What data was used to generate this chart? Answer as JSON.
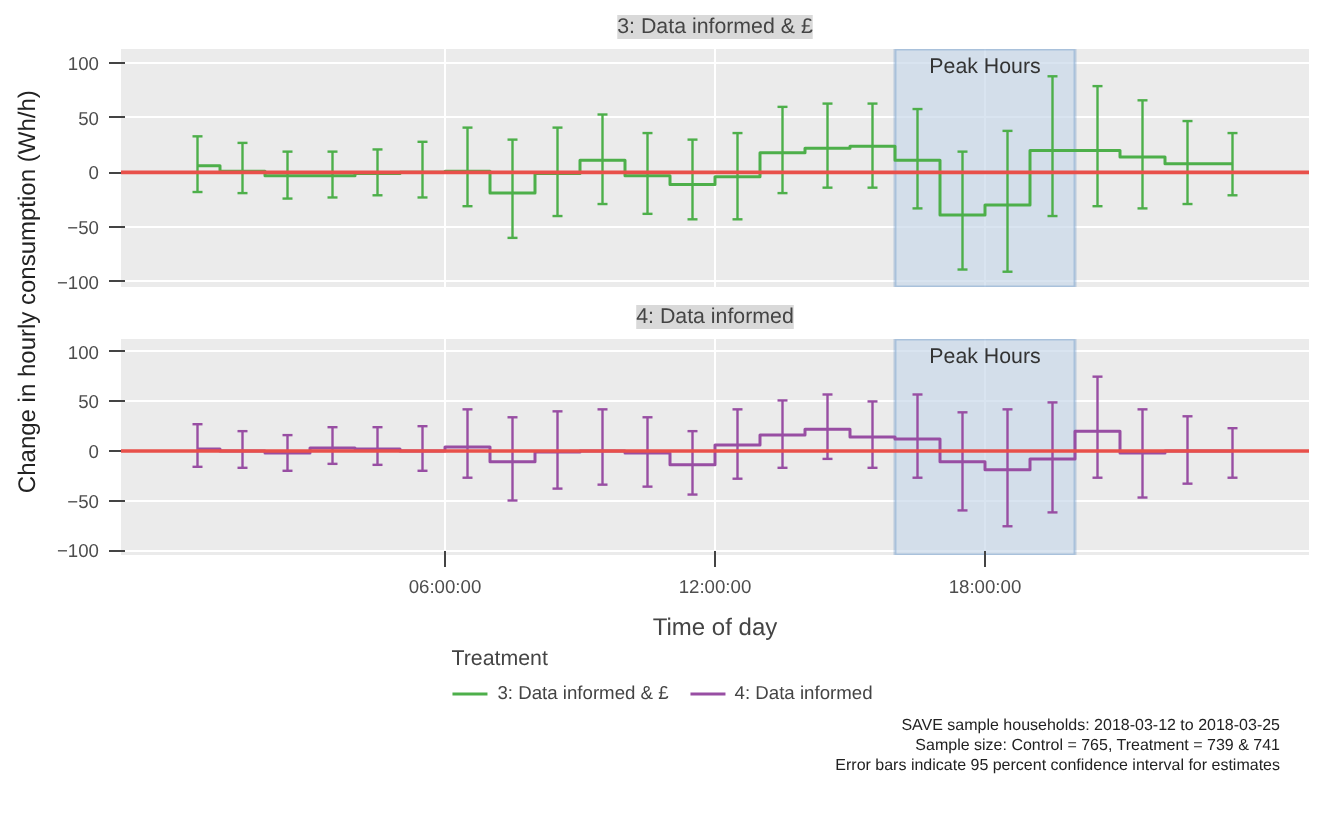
{
  "chart_data": [
    {
      "type": "step",
      "title": "3: Data informed & £",
      "ylabel": "Change in hourly consumption (Wh/h)",
      "x": [
        0.5,
        1.5,
        2.5,
        3.5,
        4.5,
        5.5,
        6.5,
        7.5,
        8.5,
        9.5,
        10.5,
        11.5,
        12.5,
        13.5,
        14.5,
        15.5,
        16.5,
        17.5,
        18.5,
        19.5,
        20.5,
        21.5,
        22.5,
        23.5
      ],
      "xlim": [
        -1.2,
        25.2
      ],
      "xticks": [
        6,
        12,
        18
      ],
      "ylim": [
        -105,
        113
      ],
      "yticks": [
        -100,
        -50,
        0,
        50,
        100
      ],
      "tick_labels": "y",
      "grid": true,
      "series": [
        {
          "name": "3: Data informed & £",
          "color": "#4daf4a",
          "values": [
            6,
            1,
            -3,
            -3,
            -1,
            0,
            1,
            -19,
            -1,
            11,
            -3,
            -11,
            -4,
            18,
            22,
            24,
            11,
            -39,
            -30,
            20,
            20,
            14,
            8,
            8
          ],
          "errors": [
            [
              -18,
              33
            ],
            [
              -19,
              27
            ],
            [
              -24,
              19
            ],
            [
              -23,
              19
            ],
            [
              -21,
              21
            ],
            [
              -23,
              28
            ],
            [
              -31,
              41
            ],
            [
              -60,
              30
            ],
            [
              -40,
              41
            ],
            [
              -29,
              53
            ],
            [
              -38,
              36
            ],
            [
              -43,
              30
            ],
            [
              -43,
              36
            ],
            [
              -19,
              60
            ],
            [
              -14,
              63
            ],
            [
              -14,
              63
            ],
            [
              -33,
              58
            ],
            [
              -89,
              19
            ],
            [
              -91,
              38
            ],
            [
              -40,
              88
            ],
            [
              -31,
              79
            ],
            [
              -33,
              66
            ],
            [
              -29,
              47
            ],
            [
              -21,
              36
            ]
          ]
        }
      ],
      "ref_lines": [
        {
          "axis": "y",
          "value": 0,
          "color": "#e8504a"
        }
      ],
      "bands": [
        {
          "axis": "x",
          "from": 16,
          "to": 20,
          "label": "Peak Hours",
          "color": "#c9d9ea"
        }
      ]
    },
    {
      "type": "step",
      "title": "4: Data informed",
      "xlabel": "Time of day",
      "x": [
        0.5,
        1.5,
        2.5,
        3.5,
        4.5,
        5.5,
        6.5,
        7.5,
        8.5,
        9.5,
        10.5,
        11.5,
        12.5,
        13.5,
        14.5,
        15.5,
        16.5,
        17.5,
        18.5,
        19.5,
        20.5,
        21.5,
        22.5,
        23.5
      ],
      "xlim": [
        -1.2,
        25.2
      ],
      "xticks": [
        {
          "value": 6,
          "label": "06:00:00"
        },
        {
          "value": 12,
          "label": "12:00:00"
        },
        {
          "value": 18,
          "label": "18:00:00"
        }
      ],
      "ylim": [
        -105,
        113
      ],
      "yticks": [
        -100,
        -50,
        0,
        50,
        100
      ],
      "grid": true,
      "legend": "bottom",
      "legend_title": "Treatment",
      "series": [
        {
          "name": "4: Data informed",
          "color": "#984ea3",
          "values": [
            2,
            0,
            -2,
            3,
            2,
            0,
            4,
            -11,
            -1,
            0,
            -2,
            -14,
            6,
            16,
            22,
            14,
            12,
            -11,
            -19,
            -8,
            20,
            -2,
            0,
            0
          ],
          "errors": [
            [
              -16,
              27
            ],
            [
              -17,
              20
            ],
            [
              -20,
              16
            ],
            [
              -13,
              24
            ],
            [
              -14,
              24
            ],
            [
              -20,
              25
            ],
            [
              -27,
              42
            ],
            [
              -50,
              34
            ],
            [
              -38,
              40
            ],
            [
              -34,
              42
            ],
            [
              -36,
              34
            ],
            [
              -44,
              20
            ],
            [
              -28,
              42
            ],
            [
              -17,
              51
            ],
            [
              -8,
              57
            ],
            [
              -17,
              50
            ],
            [
              -27,
              57
            ],
            [
              -60,
              39
            ],
            [
              -76,
              42
            ],
            [
              -62,
              49
            ],
            [
              -27,
              75
            ],
            [
              -47,
              42
            ],
            [
              -33,
              35
            ],
            [
              -27,
              23
            ]
          ]
        }
      ],
      "ref_lines": [
        {
          "axis": "y",
          "value": 0,
          "color": "#e8504a"
        }
      ],
      "bands": [
        {
          "axis": "x",
          "from": 16,
          "to": 20,
          "label": "Peak Hours",
          "color": "#c9d9ea"
        }
      ],
      "annotations": [
        "SAVE sample households: 2018-03-12 to 2018-03-25",
        "Sample size: Control = 765, Treatment = 739 & 741",
        "Error bars indicate 95 percent confidence interval for estimates"
      ]
    }
  ]
}
